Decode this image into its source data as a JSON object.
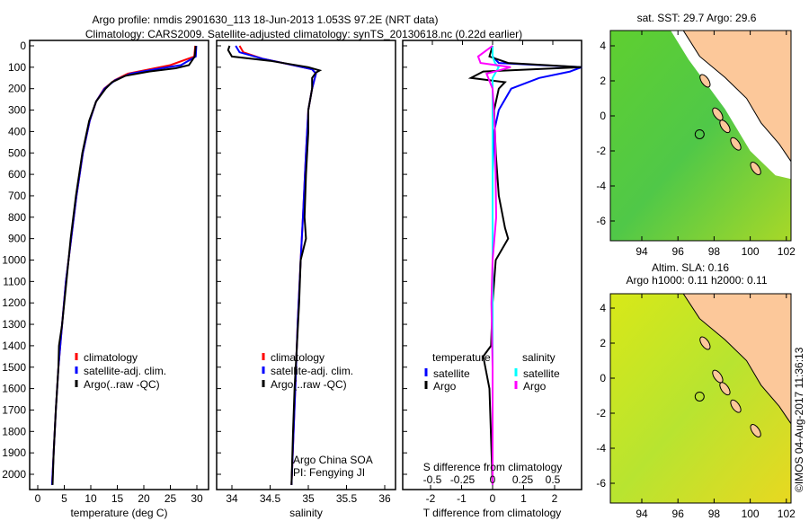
{
  "header": {
    "title1": "Argo profile: nmdis 2901630_113 18-Jun-2013 1.053S 97.2E (NRT data)",
    "title2": "Climatology: CARS2009. Satellite-adjusted climatology: synTS_20130618.nc (0.22d earlier)"
  },
  "colors": {
    "climatology": "#ff0000",
    "satellite": "#0000ff",
    "argo": "#000000",
    "sal_satellite": "#00ffff",
    "sal_argo": "#ff00ff"
  },
  "chart_data": [
    {
      "type": "line",
      "name": "temperature",
      "xlabel": "temperature (deg C)",
      "ylabel": "",
      "xlim": [
        -1.5,
        32
      ],
      "ylim": [
        2060,
        0
      ],
      "xticks": [
        "0",
        "5",
        "10",
        "15",
        "20",
        "25",
        "30"
      ],
      "xtick_values": [
        0,
        5,
        10,
        15,
        20,
        25,
        30
      ],
      "yticks": [
        "0",
        "100",
        "200",
        "300",
        "400",
        "500",
        "600",
        "700",
        "800",
        "900",
        "1000",
        "1100",
        "1200",
        "1300",
        "1400",
        "1500",
        "1600",
        "1700",
        "1800",
        "1900",
        "2000"
      ],
      "legend": [
        "climatology",
        "satellite-adj. clim.",
        "Argo(..raw -QC)"
      ],
      "series": [
        {
          "name": "climatology",
          "depth": [
            0,
            50,
            90,
            110,
            130,
            160,
            200,
            260,
            350,
            500,
            700,
            900,
            1100,
            1300,
            1500,
            1700,
            1900,
            2050
          ],
          "values": [
            29.7,
            29.5,
            25,
            21,
            17,
            14.5,
            12.5,
            11,
            9.8,
            8.5,
            7.3,
            6.3,
            5.3,
            4.6,
            3.9,
            3.4,
            3.0,
            2.7
          ]
        },
        {
          "name": "satellite-adj. clim.",
          "depth": [
            0,
            50,
            90,
            110,
            130,
            160,
            200,
            260,
            350,
            500,
            700,
            900,
            1100,
            1300,
            1500,
            1700,
            1900,
            2050
          ],
          "values": [
            29.9,
            29.8,
            27,
            22,
            17.5,
            14.6,
            12.6,
            11,
            9.8,
            8.5,
            7.3,
            6.3,
            5.3,
            4.6,
            3.9,
            3.4,
            3.0,
            2.7
          ]
        },
        {
          "name": "Argo(..raw -QC)",
          "depth": [
            0,
            50,
            90,
            105,
            120,
            140,
            170,
            200,
            260,
            350,
            500,
            700,
            900,
            1100,
            1300,
            1400,
            1500,
            1700,
            1900,
            2050
          ],
          "values": [
            29.8,
            29.6,
            28.5,
            26,
            21,
            16.5,
            14,
            12.8,
            11,
            9.7,
            8.4,
            7.2,
            6.2,
            5.4,
            4.6,
            4.0,
            3.9,
            3.4,
            3.0,
            2.8
          ]
        }
      ]
    },
    {
      "type": "line",
      "name": "salinity",
      "xlabel": "salinity",
      "xlim": [
        33.8,
        36.1
      ],
      "ylim": [
        2060,
        0
      ],
      "xticks": [
        "34",
        "34.5",
        "35",
        "35.5",
        "36"
      ],
      "xtick_values": [
        34,
        34.5,
        35,
        35.5,
        36
      ],
      "legend": [
        "climatology",
        "satellite-adj. clim.",
        "Argo(..raw -QC)"
      ],
      "annotation": [
        "Argo China SOA",
        "PI: Fengying JI"
      ],
      "series": [
        {
          "name": "climatology",
          "depth": [
            0,
            30,
            60,
            90,
            110,
            130,
            200,
            300,
            500,
            800,
            1000,
            1300,
            1600,
            2050
          ],
          "values": [
            34.1,
            34.15,
            34.4,
            34.8,
            35.05,
            35.1,
            35.05,
            35.0,
            34.97,
            34.93,
            34.9,
            34.86,
            34.83,
            34.78
          ]
        },
        {
          "name": "satellite-adj. clim.",
          "depth": [
            0,
            30,
            60,
            90,
            110,
            130,
            200,
            300,
            500,
            800,
            1000,
            1300,
            1600,
            2050
          ],
          "values": [
            34.05,
            34.1,
            34.4,
            34.8,
            35.05,
            35.1,
            35.05,
            35.0,
            34.97,
            34.93,
            34.9,
            34.86,
            34.83,
            34.78
          ]
        },
        {
          "name": "Argo(..raw -QC)",
          "depth": [
            0,
            20,
            50,
            70,
            100,
            115,
            125,
            150,
            200,
            300,
            400,
            600,
            800,
            900,
            1000,
            1200,
            1400,
            1600,
            1800,
            2050
          ],
          "values": [
            33.97,
            33.95,
            34.0,
            34.5,
            35.0,
            35.15,
            35.1,
            35.05,
            35.05,
            35.0,
            35.0,
            34.97,
            34.95,
            34.97,
            34.9,
            34.88,
            34.85,
            34.82,
            34.8,
            34.78
          ]
        }
      ]
    },
    {
      "type": "line",
      "name": "difference",
      "xlabel": "T difference from climatology",
      "x2label": "S difference from climatology",
      "xlim": [
        -3,
        3
      ],
      "ylim": [
        2060,
        0
      ],
      "xticks": [
        "-2",
        "-1",
        "0",
        "1",
        "2"
      ],
      "xtick_values": [
        -2,
        -1,
        0,
        1,
        2
      ],
      "x2ticks": [
        "-0.5",
        "-0.25",
        "0",
        "0.25",
        "0.5"
      ],
      "x2tick_values": [
        -0.5,
        -0.25,
        0,
        0.25,
        0.5
      ],
      "legend_headers": [
        "temperature",
        "salinity"
      ],
      "legend": [
        "satellite",
        "Argo",
        "satellite",
        "Argo"
      ],
      "series": [
        {
          "name": "temperature satellite",
          "depth": [
            0,
            50,
            80,
            100,
            120,
            150,
            200,
            300,
            400,
            600,
            800,
            1000,
            1500,
            2050
          ],
          "values": [
            0,
            0,
            0.2,
            3,
            2.5,
            1.5,
            0.6,
            0.2,
            0.05,
            0,
            0,
            0,
            0,
            0
          ]
        },
        {
          "name": "temperature Argo",
          "depth": [
            0,
            50,
            80,
            100,
            120,
            150,
            170,
            200,
            300,
            500,
            700,
            850,
            900,
            1000,
            1200,
            1400,
            1450,
            1600,
            2050
          ],
          "values": [
            0,
            -0.1,
            0.5,
            3,
            -0.3,
            -0.7,
            0.4,
            0.2,
            0.05,
            0.1,
            0.2,
            0.4,
            0.5,
            0.1,
            0,
            -0.05,
            -0.3,
            -0.1,
            0
          ]
        },
        {
          "name": "salinity satellite",
          "depth": [
            0,
            50,
            80,
            100,
            150,
            300,
            2050
          ],
          "values": [
            0,
            0,
            0.02,
            0.05,
            0,
            0,
            0
          ]
        },
        {
          "name": "salinity Argo",
          "depth": [
            0,
            50,
            80,
            100,
            130,
            200,
            400,
            800,
            1000,
            1200,
            1500,
            2050
          ],
          "values": [
            0,
            -0.12,
            -0.1,
            0.15,
            -0.05,
            0,
            0.02,
            0.03,
            0,
            -0.01,
            0,
            0
          ]
        }
      ]
    }
  ],
  "maps": [
    {
      "title": "sat. SST: 29.7 Argo: 29.6",
      "xticks": [
        "94",
        "96",
        "98",
        "100",
        "102"
      ],
      "yticks": [
        "4",
        "2",
        "0",
        "-2",
        "-4",
        "-6"
      ],
      "marker": {
        "lon": 97.2,
        "lat": -1.05
      }
    },
    {
      "title1": "Altim. SLA: 0.16",
      "title2": "Argo h1000: 0.11 h2000: 0.11",
      "xticks": [
        "94",
        "96",
        "98",
        "100",
        "102"
      ],
      "yticks": [
        "4",
        "2",
        "0",
        "-2",
        "-4",
        "-6"
      ],
      "marker": {
        "lon": 97.2,
        "lat": -1.05
      }
    }
  ],
  "credit": "©IMOS 04-Aug-2017 11:36:13"
}
